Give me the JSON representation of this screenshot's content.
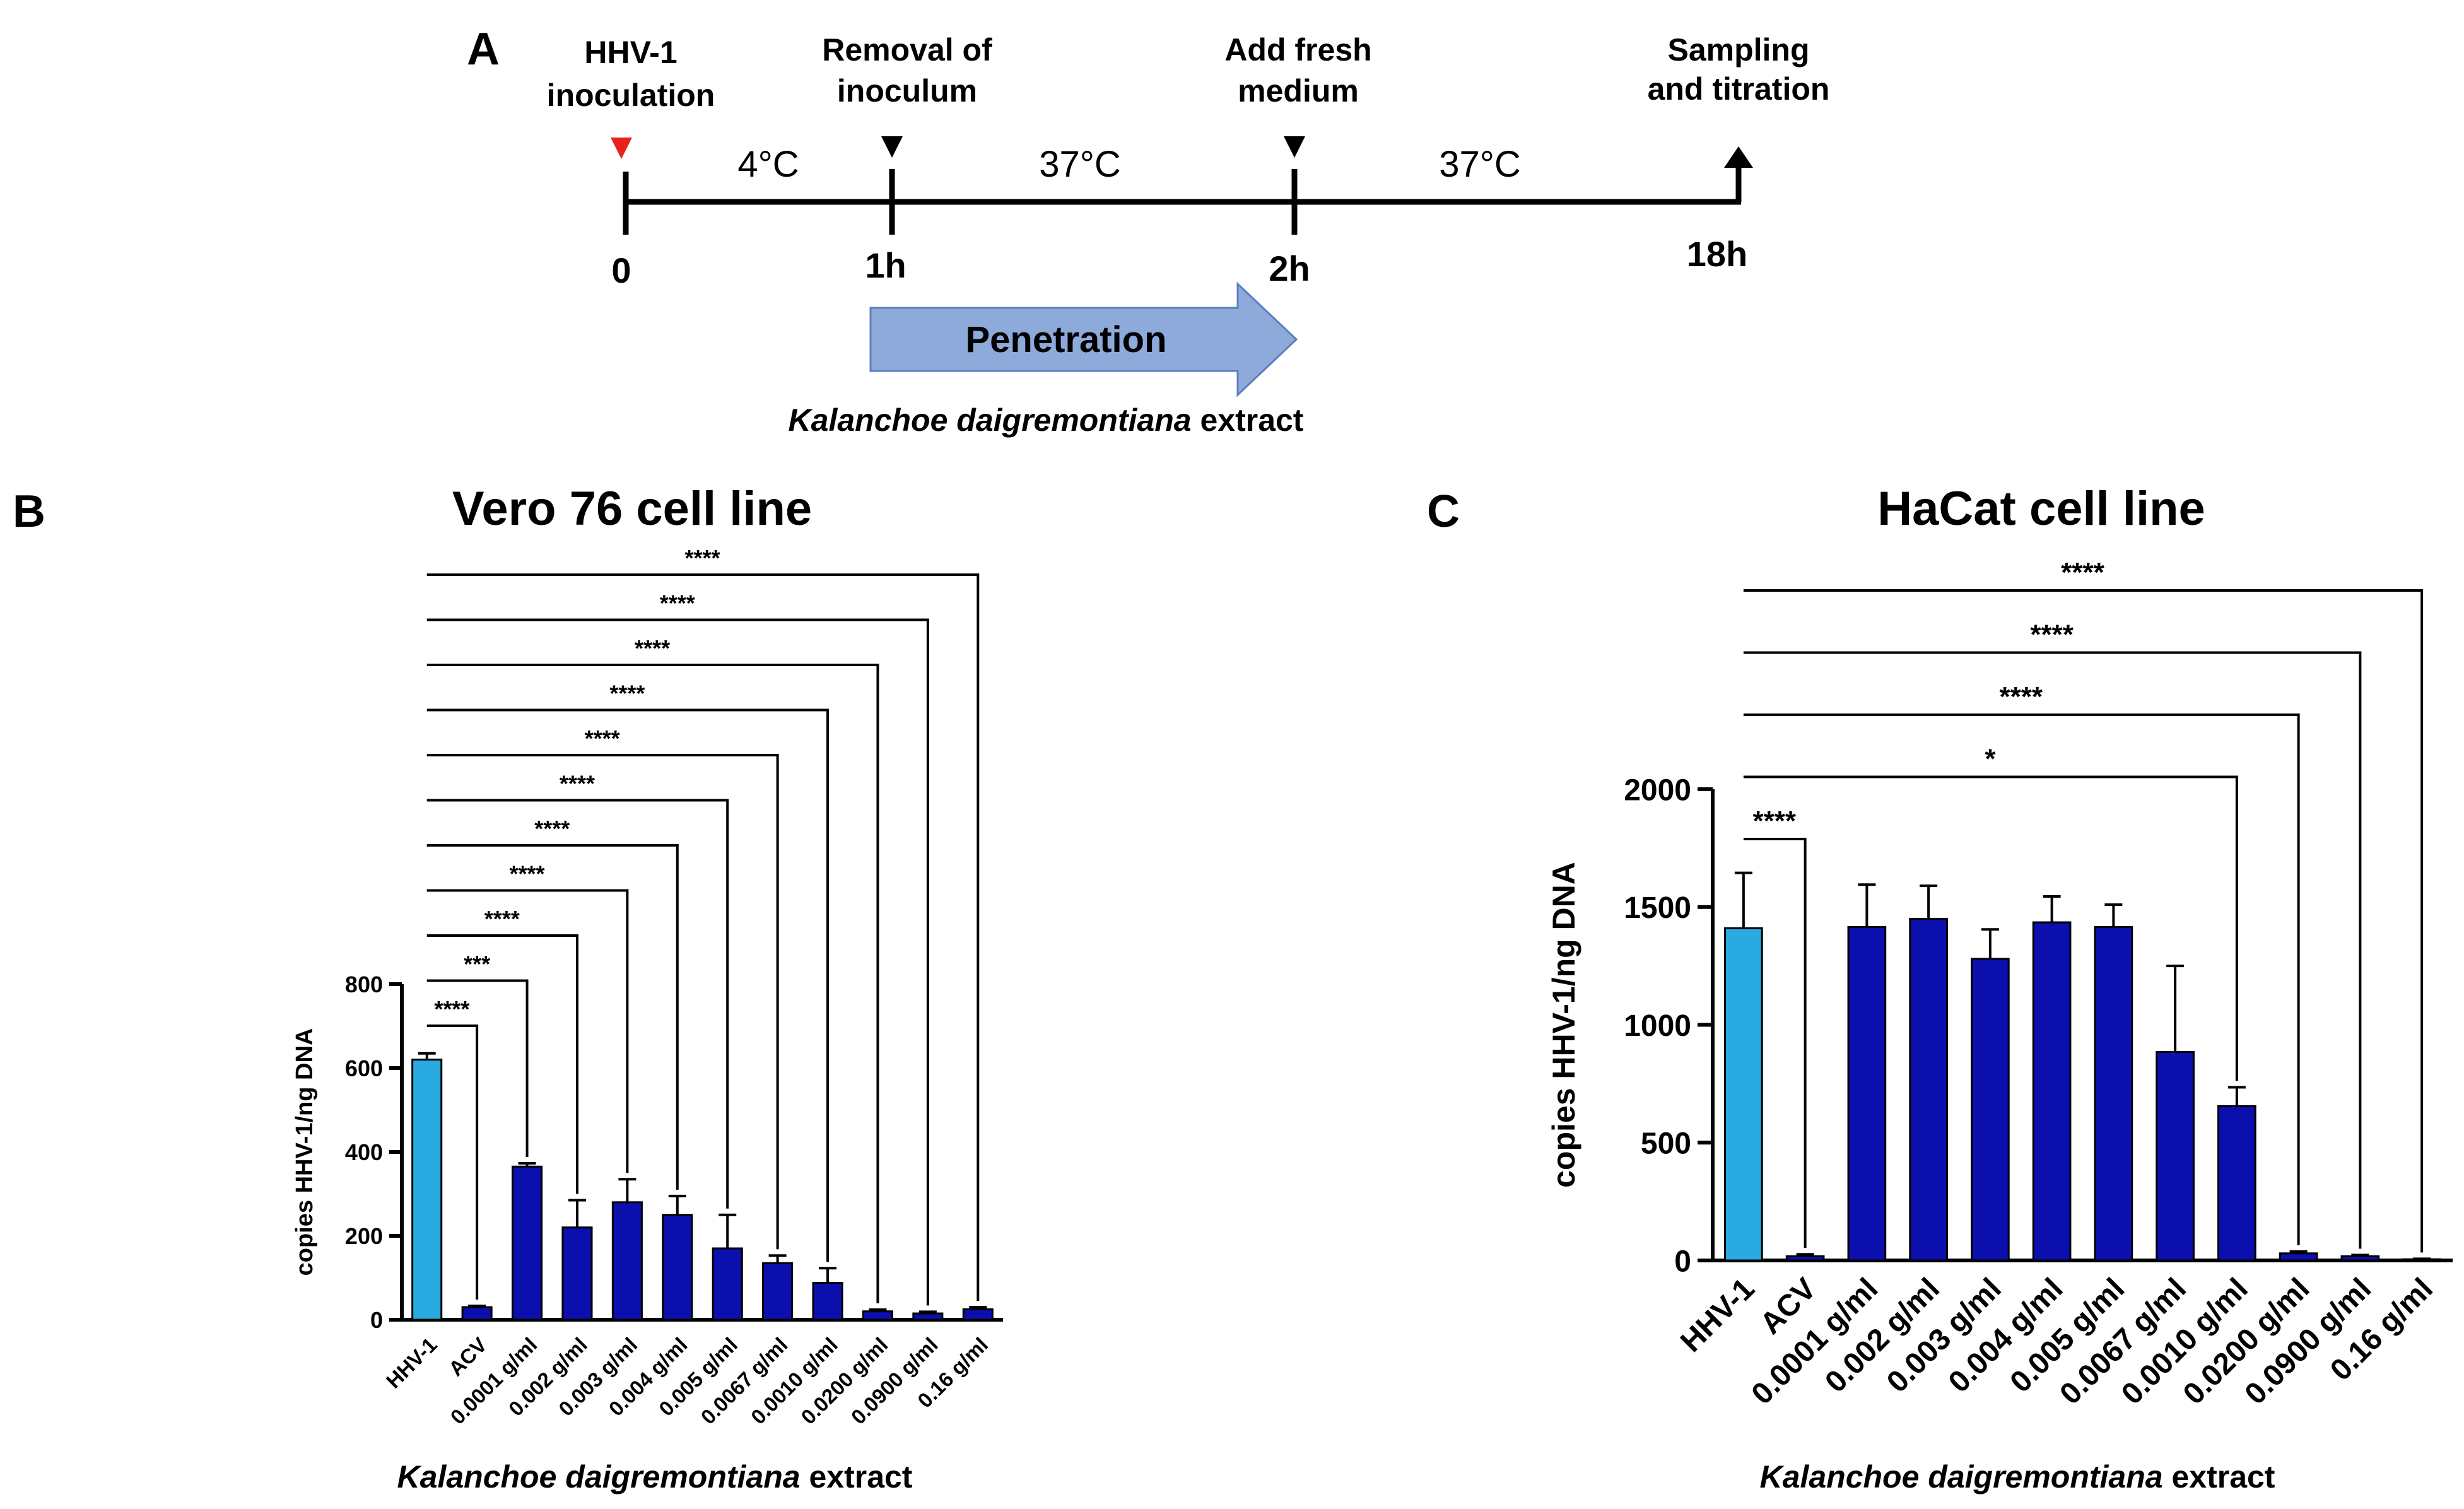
{
  "panels": {
    "A": {
      "label": "A",
      "events": [
        {
          "line1": "HHV-1",
          "line2": "inoculation"
        },
        {
          "line1": "Removal of",
          "line2": "inoculum"
        },
        {
          "line1": "Add fresh",
          "line2": "medium"
        },
        {
          "line1": "Sampling",
          "line2": "and titration"
        }
      ],
      "times": [
        "0",
        "1h",
        "2h",
        "18h"
      ],
      "temperatures": [
        "4°C",
        "37°C",
        "37°C"
      ],
      "arrow_label": "Penetration",
      "extract_label": {
        "italic": "Kalanchoe daigremontiana",
        "plain": " extract"
      },
      "colors": {
        "marker_first": "#e8221b",
        "marker": "#000000",
        "arrow_fill": "#8eaadb",
        "arrow_stroke": "#5b7fbd"
      }
    },
    "B": {
      "label": "B"
    },
    "C": {
      "label": "C"
    }
  },
  "chart_data": [
    {
      "type": "bar",
      "panel": "B",
      "title": "Vero 76 cell line",
      "ylabel": "copies HHV-1/ng DNA",
      "xlabel": {
        "italic": "Kalanchoe daigremontiana",
        "plain": " extract"
      },
      "categories": [
        "HHV-1",
        "ACV",
        "0.0001 g/ml",
        "0.002 g/ml",
        "0.003 g/ml",
        "0.004 g/ml",
        "0.005 g/ml",
        "0.0067 g/ml",
        "0.0010 g/ml",
        "0.0200 g/ml",
        "0.0900 g/ml",
        "0.16 g/ml"
      ],
      "values": [
        620,
        30,
        365,
        220,
        280,
        250,
        170,
        135,
        88,
        20,
        15,
        25
      ],
      "errors": [
        15,
        3,
        8,
        65,
        55,
        45,
        80,
        18,
        35,
        4,
        4,
        5
      ],
      "ylim": [
        0,
        800
      ],
      "yticks": [
        0,
        200,
        400,
        600,
        800
      ],
      "colors": {
        "control": "#29aae1",
        "treated": "#0b0fae",
        "edge": "#000000"
      },
      "significance": [
        {
          "target": 1,
          "label": "****"
        },
        {
          "target": 2,
          "label": "***"
        },
        {
          "target": 3,
          "label": "****"
        },
        {
          "target": 4,
          "label": "****"
        },
        {
          "target": 5,
          "label": "****"
        },
        {
          "target": 6,
          "label": "****"
        },
        {
          "target": 7,
          "label": "****"
        },
        {
          "target": 8,
          "label": "****"
        },
        {
          "target": 9,
          "label": "****"
        },
        {
          "target": 10,
          "label": "****"
        },
        {
          "target": 11,
          "label": "****"
        }
      ]
    },
    {
      "type": "bar",
      "panel": "C",
      "title": "HaCat cell line",
      "ylabel": "copies HHV-1/ng DNA",
      "xlabel": {
        "italic": "Kalanchoe daigremontiana",
        "plain": " extract"
      },
      "categories": [
        "HHV-1",
        "ACV",
        "0.0001 g/ml",
        "0.002 g/ml",
        "0.003 g/ml",
        "0.004 g/ml",
        "0.005 g/ml",
        "0.0067 g/ml",
        "0.0010 g/ml",
        "0.0200 g/ml",
        "0.0900 g/ml",
        "0.16 g/ml"
      ],
      "values": [
        1410,
        18,
        1415,
        1450,
        1280,
        1435,
        1415,
        885,
        655,
        30,
        18,
        5
      ],
      "errors": [
        235,
        8,
        180,
        140,
        125,
        110,
        95,
        365,
        80,
        8,
        5,
        2
      ],
      "ylim": [
        0,
        2000
      ],
      "yticks": [
        0,
        500,
        1000,
        1500,
        2000
      ],
      "colors": {
        "control": "#29aae1",
        "treated": "#0b0fae",
        "edge": "#000000"
      },
      "significance": [
        {
          "target": 1,
          "label": "****"
        },
        {
          "target": 8,
          "label": "*"
        },
        {
          "target": 9,
          "label": "****"
        },
        {
          "target": 10,
          "label": "****"
        },
        {
          "target": 11,
          "label": "****"
        }
      ]
    }
  ]
}
